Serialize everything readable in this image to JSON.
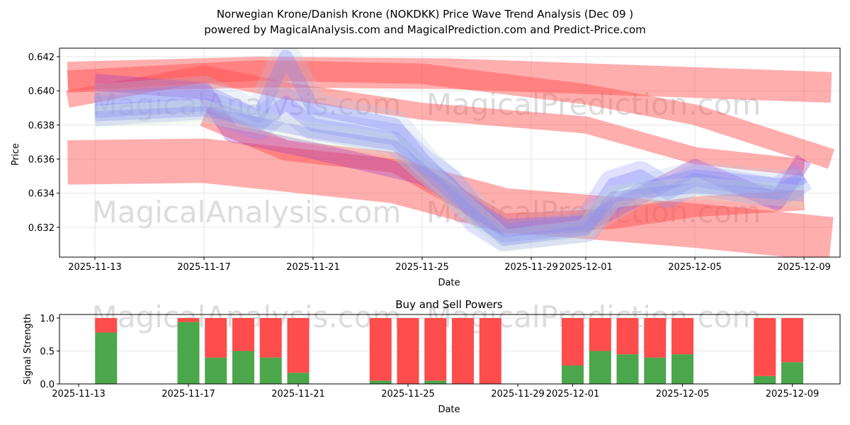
{
  "chart_data": [
    {
      "type": "area",
      "title": "Norwegian Krone/Danish Krone (NOKDKK) Price Wave Trend Analysis (Dec 09 )",
      "subtitle": "powered by MagicalAnalysis.com and MagicalPrediction.com and Predict-Price.com",
      "xlabel": "Date",
      "ylabel": "Price",
      "xticks": [
        "2025-11-13",
        "2025-11-17",
        "2025-11-21",
        "2025-11-25",
        "2025-11-29",
        "2025-12-01",
        "2025-12-05",
        "2025-12-09"
      ],
      "yticks": [
        "0.632",
        "0.634",
        "0.636",
        "0.638",
        "0.640",
        "0.642"
      ],
      "ylim": [
        0.63025,
        0.6425
      ],
      "grid": true,
      "red_bands": [
        {
          "halfwidth": 0.0009,
          "points": [
            [
              "2025-11-12",
              0.6408
            ],
            [
              "2025-11-19",
              0.6411
            ],
            [
              "2025-11-26",
              0.641
            ],
            [
              "2025-12-10",
              0.6402
            ]
          ]
        },
        {
          "halfwidth": 0.0006,
          "points": [
            [
              "2025-11-12",
              0.6406
            ],
            [
              "2025-11-19",
              0.6412
            ],
            [
              "2025-11-25",
              0.641
            ],
            [
              "2025-12-01",
              0.6398
            ],
            [
              "2025-12-05",
              0.6386
            ],
            [
              "2025-12-10",
              0.636
            ]
          ]
        },
        {
          "halfwidth": 0.0013,
          "points": [
            [
              "2025-11-12",
              0.6358
            ],
            [
              "2025-11-17",
              0.6359
            ],
            [
              "2025-11-24",
              0.6347
            ],
            [
              "2025-11-28",
              0.633
            ],
            [
              "2025-12-05",
              0.6321
            ],
            [
              "2025-12-10",
              0.6313
            ]
          ]
        },
        {
          "halfwidth": 0.0006,
          "points": [
            [
              "2025-11-17",
              0.6385
            ],
            [
              "2025-11-20",
              0.6365
            ],
            [
              "2025-11-24",
              0.6358
            ],
            [
              "2025-11-28",
              0.6322
            ],
            [
              "2025-12-02",
              0.6325
            ],
            [
              "2025-12-05",
              0.6332
            ],
            [
              "2025-12-09",
              0.6336
            ]
          ]
        },
        {
          "halfwidth": 0.0005,
          "points": [
            [
              "2025-11-12",
              0.6395
            ],
            [
              "2025-11-17",
              0.641
            ],
            [
              "2025-11-20",
              0.64
            ],
            [
              "2025-11-25",
              0.6388
            ],
            [
              "2025-12-01",
              0.638
            ],
            [
              "2025-12-05",
              0.6362
            ],
            [
              "2025-12-09",
              0.6355
            ]
          ]
        }
      ],
      "blue_bands": [
        {
          "halfwidth": 0.0004,
          "points": [
            [
              "2025-11-13",
              0.6388
            ],
            [
              "2025-11-17",
              0.6392
            ],
            [
              "2025-11-18",
              0.6386
            ],
            [
              "2025-11-19",
              0.638
            ],
            [
              "2025-11-20",
              0.6393
            ],
            [
              "2025-11-21",
              0.638
            ],
            [
              "2025-11-24",
              0.6372
            ],
            [
              "2025-11-25",
              0.6357
            ],
            [
              "2025-11-26",
              0.6346
            ],
            [
              "2025-11-27",
              0.6325
            ],
            [
              "2025-11-28",
              0.6315
            ],
            [
              "2025-12-01",
              0.632
            ],
            [
              "2025-12-02",
              0.6345
            ],
            [
              "2025-12-03",
              0.635
            ],
            [
              "2025-12-04",
              0.634
            ],
            [
              "2025-12-05",
              0.6348
            ],
            [
              "2025-12-08",
              0.634
            ],
            [
              "2025-12-09",
              0.635
            ]
          ]
        },
        {
          "halfwidth": 0.0004,
          "points": [
            [
              "2025-11-13",
              0.6395
            ],
            [
              "2025-11-17",
              0.64
            ],
            [
              "2025-11-19",
              0.6385
            ],
            [
              "2025-11-20",
              0.642
            ],
            [
              "2025-11-21",
              0.639
            ],
            [
              "2025-11-24",
              0.638
            ],
            [
              "2025-11-25",
              0.636
            ],
            [
              "2025-11-27",
              0.633
            ],
            [
              "2025-11-28",
              0.6318
            ],
            [
              "2025-12-01",
              0.6323
            ],
            [
              "2025-12-03",
              0.6342
            ],
            [
              "2025-12-05",
              0.635
            ],
            [
              "2025-12-08",
              0.6345
            ],
            [
              "2025-12-09",
              0.6345
            ]
          ]
        },
        {
          "halfwidth": 0.0003,
          "points": [
            [
              "2025-11-13",
              0.6385
            ],
            [
              "2025-11-17",
              0.6388
            ],
            [
              "2025-11-21",
              0.6375
            ],
            [
              "2025-11-24",
              0.6368
            ],
            [
              "2025-11-26",
              0.634
            ],
            [
              "2025-11-28",
              0.6312
            ],
            [
              "2025-12-01",
              0.6318
            ],
            [
              "2025-12-02",
              0.6338
            ],
            [
              "2025-12-05",
              0.6343
            ],
            [
              "2025-12-09",
              0.6338
            ]
          ]
        }
      ],
      "purple_bands": [
        {
          "halfwidth": 0.0005,
          "points": [
            [
              "2025-11-13",
              0.6405
            ],
            [
              "2025-11-17",
              0.64
            ],
            [
              "2025-11-18",
              0.6375
            ],
            [
              "2025-11-21",
              0.6365
            ],
            [
              "2025-11-25",
              0.635
            ],
            [
              "2025-11-28",
              0.632
            ],
            [
              "2025-12-01",
              0.6322
            ],
            [
              "2025-12-05",
              0.6355
            ],
            [
              "2025-12-08",
              0.6335
            ],
            [
              "2025-12-09",
              0.636
            ]
          ]
        }
      ],
      "watermarks": [
        "MagicalAnalysis.com",
        "MagicalPrediction.com"
      ]
    },
    {
      "type": "bar",
      "title": "Buy and Sell Powers",
      "xlabel": "Date",
      "ylabel": "Signal Strength",
      "xticks": [
        "2025-11-13",
        "2025-11-17",
        "2025-11-21",
        "2025-11-25",
        "2025-11-29",
        "2025-12-01",
        "2025-12-05",
        "2025-12-09"
      ],
      "yticks": [
        "0.0",
        "0.5",
        "1.0"
      ],
      "ylim": [
        0,
        1.05
      ],
      "colors": {
        "buy": "#4ca64c",
        "sell": "#ff4c4c"
      },
      "dates": [
        "2025-11-14",
        "2025-11-17",
        "2025-11-18",
        "2025-11-19",
        "2025-11-20",
        "2025-11-21",
        "2025-11-24",
        "2025-11-25",
        "2025-11-26",
        "2025-11-27",
        "2025-11-28",
        "2025-12-01",
        "2025-12-02",
        "2025-12-03",
        "2025-12-04",
        "2025-12-05",
        "2025-12-08",
        "2025-12-09"
      ],
      "buy": [
        0.78,
        0.94,
        0.4,
        0.5,
        0.4,
        0.17,
        0.05,
        0.0,
        0.05,
        0.0,
        0.0,
        0.28,
        0.5,
        0.45,
        0.4,
        0.45,
        0.12,
        0.33
      ],
      "sell": [
        0.22,
        0.06,
        0.6,
        0.5,
        0.6,
        0.83,
        0.95,
        1.0,
        0.95,
        1.0,
        1.0,
        0.72,
        0.5,
        0.55,
        0.6,
        0.55,
        0.88,
        0.67
      ]
    }
  ]
}
